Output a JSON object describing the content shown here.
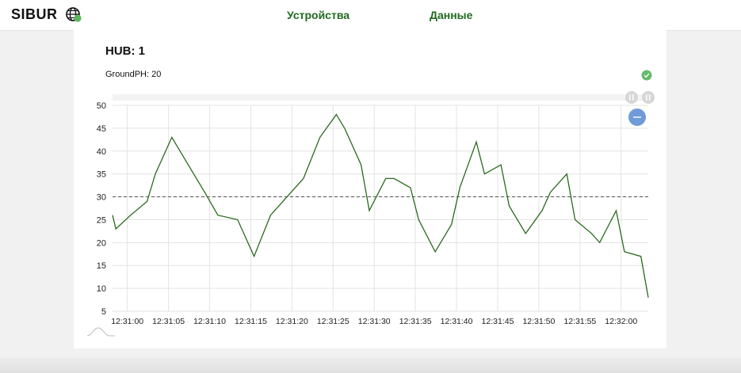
{
  "header": {
    "brand": "SIBUR",
    "nav": [
      {
        "label": "Устройства"
      },
      {
        "label": "Данные"
      }
    ]
  },
  "card": {
    "title": "HUB: 1",
    "sensor_label": "GroundPH:",
    "sensor_value": "20"
  },
  "icons": {
    "globe": "globe-icon",
    "status": "check-circle-icon",
    "zoom_out": "minus-icon",
    "range_slider": "range-slider-handles",
    "sparkline": "mini-overview-icon"
  },
  "colors": {
    "brand_green": "#1f6b1f",
    "series": "#2a6a1e",
    "status_ok": "#66bb6a",
    "zoom_button": "#6f9bd8"
  },
  "chart_data": {
    "type": "line",
    "title": "",
    "xlabel": "",
    "ylabel": "",
    "ylim": [
      5,
      50
    ],
    "yticks": [
      5,
      10,
      15,
      20,
      25,
      30,
      35,
      40,
      45,
      50
    ],
    "xticks": [
      "12:31:00",
      "12:31:05",
      "12:31:10",
      "12:31:15",
      "12:31:20",
      "12:31:25",
      "12:31:30",
      "12:31:35",
      "12:31:40",
      "12:31:45",
      "12:31:50",
      "12:31:55",
      "12:32:00"
    ],
    "xlim_seconds": [
      -1.8,
      63.3
    ],
    "grid": true,
    "reference_line": {
      "y": 30,
      "style": "dashed"
    },
    "series": [
      {
        "points": [
          [
            -1.8,
            26
          ],
          [
            -1.4,
            23
          ],
          [
            0.4,
            26
          ],
          [
            2.4,
            29
          ],
          [
            3.4,
            35
          ],
          [
            5.4,
            43
          ],
          [
            7.4,
            37
          ],
          [
            9.4,
            31
          ],
          [
            11.0,
            26
          ],
          [
            13.4,
            25
          ],
          [
            15.4,
            17
          ],
          [
            17.4,
            26
          ],
          [
            19.4,
            30
          ],
          [
            21.4,
            34
          ],
          [
            23.4,
            43
          ],
          [
            25.4,
            48
          ],
          [
            26.4,
            45
          ],
          [
            28.4,
            37
          ],
          [
            29.4,
            27
          ],
          [
            31.4,
            34
          ],
          [
            32.4,
            34
          ],
          [
            34.4,
            32
          ],
          [
            35.4,
            25
          ],
          [
            37.4,
            18
          ],
          [
            39.4,
            24
          ],
          [
            40.4,
            32
          ],
          [
            42.4,
            42
          ],
          [
            43.4,
            35
          ],
          [
            45.4,
            37
          ],
          [
            46.4,
            28
          ],
          [
            48.4,
            22
          ],
          [
            50.4,
            27
          ],
          [
            51.4,
            31
          ],
          [
            53.4,
            35
          ],
          [
            54.4,
            25
          ],
          [
            56.4,
            22
          ],
          [
            57.4,
            20
          ],
          [
            59.4,
            27
          ],
          [
            60.4,
            18
          ],
          [
            62.4,
            17
          ],
          [
            63.3,
            8
          ]
        ]
      }
    ]
  }
}
